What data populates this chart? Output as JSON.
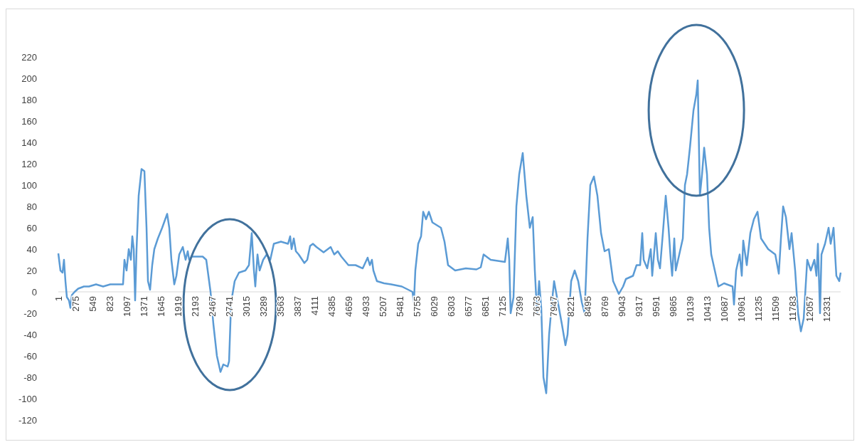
{
  "chart_data": {
    "type": "line",
    "xlim": [
      1,
      12551
    ],
    "ylim": [
      -120,
      220
    ],
    "xticks": [
      1,
      275,
      549,
      823,
      1097,
      1371,
      1645,
      1919,
      2193,
      2467,
      2741,
      3015,
      3289,
      3563,
      3837,
      4111,
      4385,
      4659,
      4933,
      5207,
      5481,
      5755,
      6029,
      6303,
      6577,
      6851,
      7125,
      7399,
      7673,
      7947,
      8221,
      8495,
      8769,
      9043,
      9317,
      9591,
      9865,
      10139,
      10413,
      10687,
      10961,
      11235,
      11509,
      11783,
      12057,
      12331
    ],
    "yticks": [
      -120,
      -100,
      -80,
      -60,
      -40,
      -20,
      0,
      20,
      40,
      60,
      80,
      100,
      120,
      140,
      160,
      180,
      200,
      220
    ],
    "grid": false,
    "series": [
      {
        "color": "#5b9bd5",
        "x": [
          1,
          35,
          69,
          92,
          115,
          138,
          172,
          195,
          218,
          263,
          320,
          412,
          492,
          606,
          720,
          834,
          1005,
          1039,
          1062,
          1096,
          1131,
          1165,
          1188,
          1211,
          1233,
          1256,
          1290,
          1336,
          1382,
          1416,
          1439,
          1473,
          1507,
          1541,
          1598,
          1667,
          1747,
          1781,
          1815,
          1861,
          1895,
          1941,
          1998,
          2043,
          2077,
          2100,
          2146,
          2317,
          2374,
          2443,
          2488,
          2545,
          2602,
          2648,
          2717,
          2740,
          2773,
          2830,
          2899,
          3002,
          3059,
          3104,
          3139,
          3161,
          3196,
          3230,
          3287,
          3344,
          3401,
          3458,
          3572,
          3686,
          3720,
          3743,
          3778,
          3812,
          3857,
          3914,
          3948,
          3994,
          4040,
          4085,
          4142,
          4256,
          4370,
          4427,
          4484,
          4541,
          4655,
          4769,
          4884,
          4963,
          4998,
          5032,
          5055,
          5112,
          5226,
          5340,
          5511,
          5682,
          5705,
          5728,
          5774,
          5820,
          5854,
          5900,
          5945,
          6002,
          6139,
          6196,
          6253,
          6367,
          6538,
          6709,
          6778,
          6823,
          6937,
          7165,
          7211,
          7234,
          7257,
          7303,
          7349,
          7394,
          7451,
          7508,
          7565,
          7611,
          7645,
          7680,
          7714,
          7748,
          7783,
          7828,
          7874,
          7919,
          7954,
          8000,
          8078,
          8136,
          8170,
          8228,
          8284,
          8341,
          8399,
          8444,
          8490,
          8535,
          8593,
          8649,
          8707,
          8764,
          8832,
          8901,
          8992,
          9061,
          9106,
          9220,
          9277,
          9334,
          9368,
          9391,
          9448,
          9505,
          9528,
          9585,
          9619,
          9653,
          9699,
          9745,
          9790,
          9825,
          9848,
          9882,
          9905,
          9962,
          10019,
          10053,
          10087,
          10133,
          10190,
          10236,
          10258,
          10293,
          10327,
          10361,
          10407,
          10441,
          10475,
          10532,
          10589,
          10680,
          10817,
          10840,
          10874,
          10931,
          10965,
          10988,
          11045,
          11102,
          11159,
          11217,
          11274,
          11331,
          11388,
          11502,
          11559,
          11593,
          11628,
          11673,
          11730,
          11764,
          11821,
          11867,
          11913,
          11958,
          12015,
          12072,
          12129,
          12163,
          12186,
          12220,
          12243,
          12300,
          12357,
          12391,
          12437,
          12482,
          12528,
          12551
        ],
        "values": [
          36,
          20,
          18,
          30,
          10,
          -5,
          -8,
          -15,
          -3,
          0,
          3,
          5,
          5,
          7,
          5,
          7,
          7,
          7,
          30,
          20,
          40,
          30,
          52,
          40,
          -8,
          40,
          90,
          115,
          113,
          60,
          10,
          2,
          25,
          40,
          50,
          60,
          73,
          60,
          30,
          7,
          15,
          35,
          42,
          30,
          38,
          30,
          33,
          33,
          30,
          0,
          -30,
          -60,
          -75,
          -68,
          -70,
          -65,
          -10,
          10,
          18,
          20,
          25,
          55,
          20,
          5,
          35,
          20,
          30,
          35,
          30,
          45,
          47,
          45,
          52,
          40,
          50,
          38,
          35,
          30,
          27,
          30,
          43,
          45,
          42,
          37,
          42,
          35,
          38,
          33,
          25,
          25,
          22,
          32,
          25,
          30,
          20,
          10,
          8,
          7,
          5,
          0,
          -10,
          20,
          45,
          52,
          75,
          68,
          75,
          65,
          60,
          47,
          25,
          20,
          22,
          21,
          23,
          35,
          30,
          28,
          50,
          30,
          -20,
          -5,
          80,
          110,
          130,
          90,
          60,
          70,
          20,
          -20,
          10,
          -15,
          -80,
          -95,
          -40,
          -10,
          10,
          -5,
          -30,
          -50,
          -40,
          10,
          20,
          10,
          -10,
          -20,
          50,
          100,
          108,
          90,
          55,
          38,
          40,
          10,
          -2,
          5,
          12,
          15,
          25,
          25,
          55,
          30,
          22,
          40,
          15,
          55,
          30,
          22,
          55,
          90,
          60,
          30,
          15,
          50,
          20,
          35,
          50,
          100,
          110,
          135,
          170,
          185,
          198,
          90,
          110,
          135,
          110,
          60,
          35,
          20,
          5,
          8,
          5,
          -12,
          20,
          35,
          15,
          48,
          25,
          55,
          68,
          75,
          50,
          45,
          40,
          35,
          17,
          50,
          80,
          70,
          40,
          55,
          20,
          -20,
          -37,
          -25,
          30,
          20,
          30,
          15,
          45,
          -20,
          35,
          45,
          60,
          45,
          60,
          15,
          10,
          18
        ]
      }
    ]
  }
}
